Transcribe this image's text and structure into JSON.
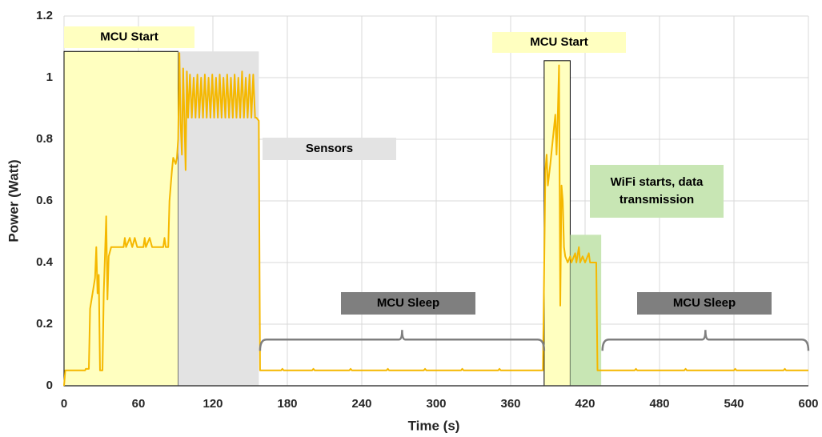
{
  "chart_data": {
    "type": "line",
    "x_label": "Time (s)",
    "y_label": "Power (Watt)",
    "color": "#f5b800",
    "grid": true,
    "xlim": [
      0,
      600
    ],
    "xticks": [
      0,
      60,
      120,
      180,
      240,
      300,
      360,
      420,
      480,
      540,
      600
    ],
    "ylim": [
      0,
      1.2
    ],
    "yticks": [
      0,
      0.2,
      0.4,
      0.6,
      0.8,
      1,
      1.2
    ],
    "x": [
      0,
      1,
      17,
      17.5,
      20,
      21,
      23,
      25,
      26,
      27,
      28,
      29,
      31,
      32,
      34,
      35,
      36,
      38,
      48,
      49,
      50,
      53,
      55,
      57,
      59,
      64,
      65,
      66,
      69,
      71,
      80,
      81,
      82,
      84,
      85,
      87,
      88,
      90,
      91,
      92,
      93,
      94,
      95,
      96,
      97,
      98,
      99,
      100,
      101.5,
      103,
      104.5,
      106,
      107.5,
      109,
      110.5,
      112,
      113.5,
      115,
      116.5,
      118,
      119.5,
      121,
      122.5,
      124,
      125.5,
      127,
      128.5,
      130,
      131.5,
      133,
      134.5,
      136,
      137.5,
      139,
      140.5,
      142,
      143.5,
      145,
      146.5,
      148,
      149.5,
      151,
      152.5,
      154,
      155,
      157,
      158,
      175,
      176,
      177,
      200,
      201,
      202,
      230,
      231,
      232,
      260,
      261,
      262,
      290,
      291,
      292,
      320,
      321,
      322,
      350,
      351,
      352,
      386,
      388,
      389,
      390,
      392,
      394,
      396,
      397,
      398,
      399,
      400,
      401,
      402,
      403,
      404,
      406,
      408,
      409,
      412,
      413,
      415,
      416,
      418,
      420,
      423,
      424,
      429,
      430,
      460,
      461,
      462,
      500,
      501,
      502,
      540,
      541,
      542,
      580,
      581,
      582,
      600
    ],
    "values": [
      0,
      0.05,
      0.05,
      0.055,
      0.055,
      0.25,
      0.3,
      0.35,
      0.45,
      0.3,
      0.36,
      0.05,
      0.05,
      0.3,
      0.55,
      0.28,
      0.42,
      0.45,
      0.45,
      0.48,
      0.45,
      0.48,
      0.45,
      0.48,
      0.45,
      0.45,
      0.48,
      0.45,
      0.48,
      0.45,
      0.45,
      0.48,
      0.45,
      0.45,
      0.6,
      0.7,
      0.74,
      0.72,
      0.74,
      0.8,
      1.08,
      0.85,
      0.75,
      1.03,
      0.87,
      0.7,
      1.02,
      0.87,
      1.01,
      0.87,
      1.0,
      0.87,
      1.01,
      0.87,
      1.0,
      0.87,
      1.01,
      0.87,
      1.0,
      0.87,
      1.01,
      0.87,
      1.0,
      0.87,
      1.01,
      0.87,
      1.0,
      0.87,
      1.01,
      0.87,
      1.0,
      0.87,
      1.01,
      0.87,
      1.0,
      0.87,
      1.02,
      0.87,
      1.0,
      0.87,
      1.01,
      0.87,
      1.01,
      0.87,
      0.87,
      0.86,
      0.05,
      0.05,
      0.055,
      0.05,
      0.05,
      0.055,
      0.05,
      0.05,
      0.055,
      0.05,
      0.05,
      0.055,
      0.05,
      0.05,
      0.055,
      0.05,
      0.05,
      0.055,
      0.05,
      0.05,
      0.055,
      0.05,
      0.05,
      0.7,
      0.75,
      0.65,
      0.72,
      0.8,
      0.88,
      0.75,
      0.88,
      1.04,
      0.26,
      0.65,
      0.6,
      0.45,
      0.42,
      0.4,
      0.42,
      0.4,
      0.43,
      0.4,
      0.45,
      0.4,
      0.42,
      0.4,
      0.43,
      0.4,
      0.4,
      0.05,
      0.05,
      0.055,
      0.05,
      0.05,
      0.055,
      0.05,
      0.05,
      0.055,
      0.05,
      0.05,
      0.055,
      0.05,
      0.05
    ],
    "phases": [
      {
        "label": [
          "MCU Start"
        ],
        "style": "shade",
        "start": 0,
        "end": 92,
        "top": 1.085,
        "fill": "#ffffc0",
        "stroke": "#000000"
      },
      {
        "label": [
          "Sensors"
        ],
        "style": "shade",
        "start": 92,
        "end": 157,
        "top": 1.085,
        "fill": "#e3e3e3",
        "stroke": "none"
      },
      {
        "label": [
          "MCU Start"
        ],
        "style": "shade",
        "start": 387,
        "end": 408,
        "top": 1.055,
        "fill": "#ffffc0",
        "stroke": "#000000"
      },
      {
        "label": [
          "WiFi starts, data",
          "transmission"
        ],
        "style": "shade",
        "start": 408,
        "end": 433,
        "top": 0.49,
        "fill": "#c8e6b4",
        "stroke": "none"
      },
      {
        "label": [
          "MCU Sleep"
        ],
        "style": "brace",
        "start": 158,
        "end": 387,
        "level": 0.15,
        "fill": "#7f7f7f",
        "stroke": "#7f7f7f"
      },
      {
        "label": [
          "MCU Sleep"
        ],
        "style": "brace",
        "start": 434,
        "end": 600,
        "level": 0.15,
        "fill": "#7f7f7f",
        "stroke": "#7f7f7f"
      }
    ]
  }
}
